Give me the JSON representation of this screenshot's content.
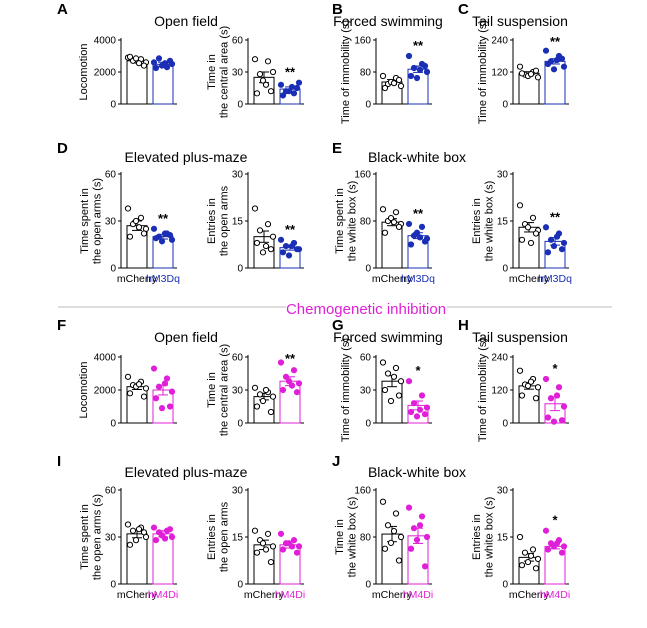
{
  "colors": {
    "control": "#000000",
    "excit": "#1a2fb5",
    "inhib": "#e020d8",
    "divider": "#bdbdbd"
  },
  "section_title": "Chemogenetic inhibition",
  "panel_letters": [
    "A",
    "B",
    "C",
    "D",
    "E",
    "F",
    "G",
    "H",
    "I",
    "J"
  ],
  "group_titles": [
    "Open field",
    "Forced swimming",
    "Tail suspension",
    "Elevated plus-maze",
    "Black-white box",
    "Open field",
    "Forced swimming",
    "Tail suspension",
    "Elevated plus-maze",
    "Black-white box"
  ],
  "chart_data": [
    {
      "type": "bar",
      "panel": "A",
      "ylabel": [
        "Locomotion"
      ],
      "ylim": [
        0,
        4000
      ],
      "yticks": [
        "0",
        "2000",
        "4000"
      ],
      "categories": [
        "mCherry",
        "hM3Dq"
      ],
      "show_xlabels": false,
      "sig": "",
      "series": [
        {
          "category": "mCherry",
          "mean": 2700,
          "sem": 140,
          "points": [
            2900,
            2800,
            2700,
            2600,
            2950,
            2400,
            2850,
            2550
          ]
        },
        {
          "category": "hM3Dq",
          "mean": 2480,
          "sem": 130,
          "points": [
            2600,
            2300,
            2850,
            2500,
            2250,
            2700,
            2400,
            2550
          ]
        }
      ]
    },
    {
      "type": "bar",
      "panel": "A",
      "ylabel": [
        "Time in",
        "the central area (s)"
      ],
      "ylim": [
        0,
        60
      ],
      "yticks": [
        "0",
        "30",
        "60"
      ],
      "categories": [
        "mCherry",
        "hM3Dq"
      ],
      "show_xlabels": false,
      "sig": "**",
      "series": [
        {
          "category": "mCherry",
          "mean": 25,
          "sem": 5,
          "points": [
            42,
            40,
            28,
            30,
            10,
            12,
            22,
            18
          ]
        },
        {
          "category": "hM3Dq",
          "mean": 14,
          "sem": 2,
          "points": [
            18,
            10,
            12,
            20,
            8,
            15,
            12,
            16
          ]
        }
      ]
    },
    {
      "type": "bar",
      "panel": "B",
      "ylabel": [
        "Time of immobility (s)"
      ],
      "ylim": [
        0,
        160
      ],
      "yticks": [
        "0",
        "80",
        "160"
      ],
      "categories": [
        "mCherry",
        "hM3Dq"
      ],
      "show_xlabels": false,
      "sig": "**",
      "series": [
        {
          "category": "mCherry",
          "mean": 55,
          "sem": 6,
          "points": [
            70,
            65,
            50,
            45,
            40,
            60,
            55,
            52
          ]
        },
        {
          "category": "hM3Dq",
          "mean": 87,
          "sem": 8,
          "points": [
            120,
            100,
            90,
            80,
            70,
            95,
            65,
            85
          ]
        }
      ]
    },
    {
      "type": "bar",
      "panel": "C",
      "ylabel": [
        "Time of immobility (s)"
      ],
      "ylim": [
        0,
        240
      ],
      "yticks": [
        "0",
        "120",
        "240"
      ],
      "categories": [
        "mCherry",
        "hM3Dq"
      ],
      "show_xlabels": false,
      "sig": "**",
      "series": [
        {
          "category": "mCherry",
          "mean": 115,
          "sem": 6,
          "points": [
            140,
            120,
            110,
            100,
            115,
            125,
            105,
            112
          ]
        },
        {
          "category": "hM3Dq",
          "mean": 160,
          "sem": 10,
          "points": [
            200,
            180,
            160,
            140,
            150,
            170,
            130,
            165
          ]
        }
      ]
    },
    {
      "type": "bar",
      "panel": "D",
      "ylabel": [
        "Time spent in",
        "the open arms (s)"
      ],
      "ylim": [
        0,
        60
      ],
      "yticks": [
        "0",
        "30",
        "60"
      ],
      "categories": [
        "mCherry",
        "hM3Dq"
      ],
      "show_xlabels": true,
      "sig": "**",
      "series": [
        {
          "category": "mCherry",
          "mean": 27,
          "sem": 3,
          "points": [
            38,
            32,
            28,
            25,
            20,
            22,
            30,
            26
          ]
        },
        {
          "category": "hM3Dq",
          "mean": 20,
          "sem": 1.5,
          "points": [
            25,
            22,
            20,
            18,
            19,
            21,
            17,
            22
          ]
        }
      ]
    },
    {
      "type": "bar",
      "panel": "D",
      "ylabel": [
        "Entries in",
        "the open arms"
      ],
      "ylim": [
        0,
        30
      ],
      "yticks": [
        "0",
        "15",
        "30"
      ],
      "categories": [
        "mCherry",
        "hM3Dq"
      ],
      "show_xlabels": false,
      "sig": "**",
      "series": [
        {
          "category": "mCherry",
          "mean": 10,
          "sem": 1.8,
          "points": [
            19,
            14,
            12,
            10,
            8,
            6,
            5,
            7
          ]
        },
        {
          "category": "hM3Dq",
          "mean": 6.5,
          "sem": 0.8,
          "points": [
            9,
            8,
            7,
            6,
            5,
            6,
            4,
            7
          ]
        }
      ]
    },
    {
      "type": "bar",
      "panel": "E",
      "ylabel": [
        "Time spent in",
        "the white box (s)"
      ],
      "ylim": [
        0,
        160
      ],
      "yticks": [
        "0",
        "80",
        "160"
      ],
      "categories": [
        "mCherry",
        "hM3Dq"
      ],
      "show_xlabels": true,
      "sig": "**",
      "series": [
        {
          "category": "mCherry",
          "mean": 78,
          "sem": 6,
          "points": [
            100,
            95,
            80,
            75,
            60,
            70,
            85,
            78
          ]
        },
        {
          "category": "hM3Dq",
          "mean": 55,
          "sem": 5,
          "points": [
            75,
            70,
            55,
            50,
            40,
            45,
            60,
            52
          ]
        }
      ]
    },
    {
      "type": "bar",
      "panel": "E",
      "ylabel": [
        "Entries in",
        "the white box (s)"
      ],
      "ylim": [
        0,
        30
      ],
      "yticks": [
        "0",
        "15",
        "30"
      ],
      "categories": [
        "mCherry",
        "hM3Dq"
      ],
      "show_xlabels": true,
      "sig": "**",
      "series": [
        {
          "category": "mCherry",
          "mean": 13,
          "sem": 1.5,
          "points": [
            20,
            16,
            14,
            12,
            9,
            11,
            13,
            8
          ]
        },
        {
          "category": "hM3Dq",
          "mean": 8.5,
          "sem": 1.2,
          "points": [
            13,
            11,
            9,
            8,
            5,
            6,
            7,
            10
          ]
        }
      ]
    },
    {
      "type": "bar",
      "panel": "F",
      "ylabel": [
        "Locomotion"
      ],
      "ylim": [
        0,
        4000
      ],
      "yticks": [
        "0",
        "2000",
        "4000"
      ],
      "categories": [
        "mCherry",
        "hM4Di"
      ],
      "show_xlabels": false,
      "sig": "",
      "series": [
        {
          "category": "mCherry",
          "mean": 2200,
          "sem": 170,
          "points": [
            2800,
            2500,
            2300,
            2100,
            1800,
            1600,
            2200,
            2350
          ]
        },
        {
          "category": "hM4Di",
          "mean": 2000,
          "sem": 300,
          "points": [
            3300,
            2700,
            2200,
            1900,
            1500,
            1000,
            900,
            2400
          ]
        }
      ]
    },
    {
      "type": "bar",
      "panel": "F",
      "ylabel": [
        "Time in",
        "the central area (s)"
      ],
      "ylim": [
        0,
        60
      ],
      "yticks": [
        "0",
        "30",
        "60"
      ],
      "categories": [
        "mCherry",
        "hM4Di"
      ],
      "show_xlabels": false,
      "sig": "**",
      "series": [
        {
          "category": "mCherry",
          "mean": 24,
          "sem": 3,
          "points": [
            32,
            28,
            26,
            24,
            15,
            10,
            20,
            30
          ]
        },
        {
          "category": "hM4Di",
          "mean": 38,
          "sem": 4,
          "points": [
            55,
            48,
            42,
            36,
            30,
            28,
            38,
            34
          ]
        }
      ]
    },
    {
      "type": "bar",
      "panel": "G",
      "ylabel": [
        "Time of immobility (s)"
      ],
      "ylim": [
        0,
        60
      ],
      "yticks": [
        "0",
        "30",
        "60"
      ],
      "categories": [
        "mCherry",
        "hM4Di"
      ],
      "show_xlabels": false,
      "sig": "*",
      "series": [
        {
          "category": "mCherry",
          "mean": 38,
          "sem": 5,
          "points": [
            55,
            50,
            45,
            38,
            30,
            25,
            20,
            42
          ]
        },
        {
          "category": "hM4Di",
          "mean": 16,
          "sem": 4,
          "points": [
            38,
            25,
            18,
            14,
            10,
            8,
            6,
            12
          ]
        }
      ]
    },
    {
      "type": "bar",
      "panel": "H",
      "ylabel": [
        "Time of immobility (s)"
      ],
      "ylim": [
        0,
        240
      ],
      "yticks": [
        "0",
        "120",
        "240"
      ],
      "categories": [
        "mCherry",
        "hM4Di"
      ],
      "show_xlabels": false,
      "sig": "*",
      "series": [
        {
          "category": "mCherry",
          "mean": 135,
          "sem": 12,
          "points": [
            190,
            160,
            140,
            130,
            100,
            90,
            135,
            150
          ]
        },
        {
          "category": "hM4Di",
          "mean": 70,
          "sem": 25,
          "points": [
            160,
            130,
            90,
            60,
            20,
            10,
            5,
            100
          ]
        }
      ]
    },
    {
      "type": "bar",
      "panel": "I",
      "ylabel": [
        "Time spent in",
        "the open arms (s)"
      ],
      "ylim": [
        0,
        60
      ],
      "yticks": [
        "0",
        "30",
        "60"
      ],
      "categories": [
        "mCherry",
        "hM4Di"
      ],
      "show_xlabels": true,
      "sig": "",
      "series": [
        {
          "category": "mCherry",
          "mean": 32,
          "sem": 2.5,
          "points": [
            38,
            36,
            34,
            30,
            25,
            33,
            28,
            35
          ]
        },
        {
          "category": "hM4Di",
          "mean": 32,
          "sem": 2,
          "points": [
            36,
            34,
            33,
            30,
            28,
            35,
            31,
            29
          ]
        }
      ]
    },
    {
      "type": "bar",
      "panel": "I",
      "ylabel": [
        "Entries in",
        "the open arms"
      ],
      "ylim": [
        0,
        30
      ],
      "yticks": [
        "0",
        "15",
        "30"
      ],
      "categories": [
        "mCherry",
        "hM4Di"
      ],
      "show_xlabels": true,
      "sig": "",
      "series": [
        {
          "category": "mCherry",
          "mean": 12.5,
          "sem": 1.5,
          "points": [
            17,
            16,
            14,
            12,
            10,
            7,
            13,
            11
          ]
        },
        {
          "category": "hM4Di",
          "mean": 12.5,
          "sem": 1,
          "points": [
            16,
            14,
            13,
            12,
            11,
            10,
            13,
            12
          ]
        }
      ]
    },
    {
      "type": "bar",
      "panel": "J",
      "ylabel": [
        "Time in",
        "the white box (s)"
      ],
      "ylim": [
        0,
        160
      ],
      "yticks": [
        "0",
        "80",
        "160"
      ],
      "categories": [
        "mCherry",
        "hM4Di"
      ],
      "show_xlabels": true,
      "sig": "",
      "series": [
        {
          "category": "mCherry",
          "mean": 85,
          "sem": 13,
          "points": [
            140,
            120,
            100,
            80,
            60,
            40,
            70,
            90
          ]
        },
        {
          "category": "hM4Di",
          "mean": 82,
          "sem": 13,
          "points": [
            130,
            115,
            95,
            80,
            60,
            30,
            75,
            100
          ]
        }
      ]
    },
    {
      "type": "bar",
      "panel": "J",
      "ylabel": [
        "Entries in",
        "the white box (s)"
      ],
      "ylim": [
        0,
        30
      ],
      "yticks": [
        "0",
        "15",
        "30"
      ],
      "categories": [
        "mCherry",
        "hM4Di"
      ],
      "show_xlabels": true,
      "sig": "*",
      "series": [
        {
          "category": "mCherry",
          "mean": 8.5,
          "sem": 1.2,
          "points": [
            15,
            11,
            10,
            8,
            6,
            5,
            7,
            9
          ]
        },
        {
          "category": "hM4Di",
          "mean": 12,
          "sem": 0.8,
          "points": [
            17,
            14,
            13,
            12,
            11,
            10,
            12,
            13
          ]
        }
      ]
    }
  ]
}
